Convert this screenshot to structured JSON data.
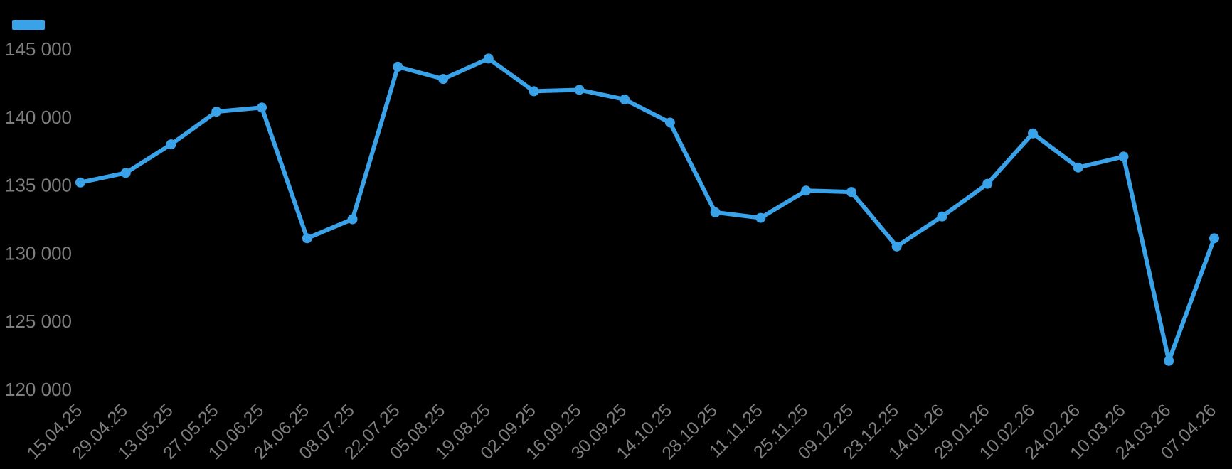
{
  "colors": {
    "background": "#000000",
    "axis_label": "#7f7f7f",
    "series": "#3aa2e8"
  },
  "legend": {
    "items": [
      {
        "label": "",
        "color": "#3aa2e8"
      }
    ]
  },
  "chart_data": {
    "type": "line",
    "title": "",
    "xlabel": "",
    "ylabel": "",
    "grid": false,
    "legend_position": "top-left",
    "ylim": [
      120000,
      145000
    ],
    "y_ticks": [
      145000,
      140000,
      135000,
      130000,
      125000,
      120000
    ],
    "y_tick_labels": [
      "145 000",
      "140 000",
      "135 000",
      "130 000",
      "125 000",
      "120 000"
    ],
    "categories": [
      "15.04.25",
      "29.04.25",
      "13.05.25",
      "27.05.25",
      "10.06.25",
      "24.06.25",
      "08.07.25",
      "22.07.25",
      "05.08.25",
      "19.08.25",
      "02.09.25",
      "16.09.25",
      "30.09.25",
      "14.10.25",
      "28.10.25",
      "11.11.25",
      "25.11.25",
      "09.12.25",
      "23.12.25",
      "14.01.26",
      "29.01.26",
      "10.02.26",
      "24.02.26",
      "10.03.26",
      "24.03.26",
      "07.04.26"
    ],
    "series": [
      {
        "name": "",
        "color": "#3aa2e8",
        "values": [
          135200,
          135900,
          138000,
          140400,
          140700,
          131100,
          132500,
          143700,
          142800,
          144300,
          141900,
          142000,
          141300,
          139600,
          133000,
          132600,
          134600,
          134500,
          130500,
          132700,
          135100,
          138800,
          136300,
          137100,
          122100,
          131100
        ]
      }
    ]
  }
}
